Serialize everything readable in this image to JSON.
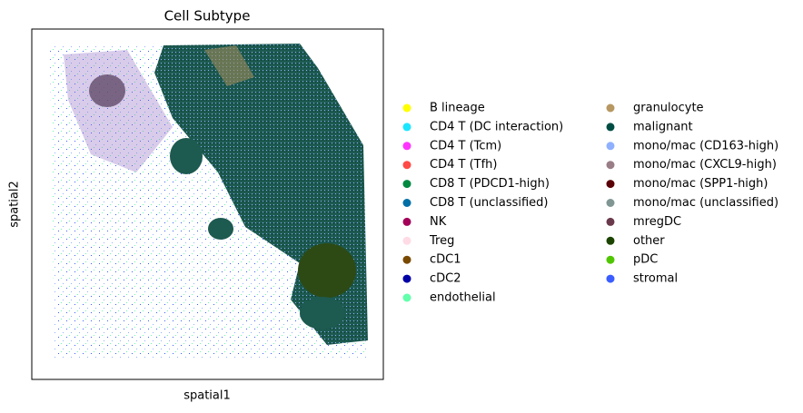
{
  "chart_data": {
    "type": "scatter",
    "title": "Cell Subtype",
    "x_label": "spatial1",
    "y_label": "spatial2",
    "series": [
      {
        "name": "B lineage",
        "color": "#ffff00"
      },
      {
        "name": "CD4 T (DC interaction)",
        "color": "#1ce6ff"
      },
      {
        "name": "CD4 T (Tcm)",
        "color": "#ff34ff"
      },
      {
        "name": "CD4 T (Tfh)",
        "color": "#ff4a46"
      },
      {
        "name": "CD8 T (PDCD1-high)",
        "color": "#008941"
      },
      {
        "name": "CD8 T (unclassified)",
        "color": "#006fa6"
      },
      {
        "name": "NK",
        "color": "#a30059"
      },
      {
        "name": "Treg",
        "color": "#ffdbe5"
      },
      {
        "name": "cDC1",
        "color": "#7a4900"
      },
      {
        "name": "cDC2",
        "color": "#0000a6"
      },
      {
        "name": "endothelial",
        "color": "#63ffac"
      },
      {
        "name": "granulocyte",
        "color": "#b79762"
      },
      {
        "name": "malignant",
        "color": "#004d43"
      },
      {
        "name": "mono/mac (CD163-high)",
        "color": "#8fb0ff"
      },
      {
        "name": "mono/mac (CXCL9-high)",
        "color": "#997d87"
      },
      {
        "name": "mono/mac (SPP1-high)",
        "color": "#5a0007"
      },
      {
        "name": "mono/mac (unclassified)",
        "color": "#809693"
      },
      {
        "name": "mregDC",
        "color": "#6a3a4c"
      },
      {
        "name": "other",
        "color": "#1b4400"
      },
      {
        "name": "pDC",
        "color": "#4fc601"
      },
      {
        "name": "stromal",
        "color": "#3b5dff"
      }
    ]
  }
}
